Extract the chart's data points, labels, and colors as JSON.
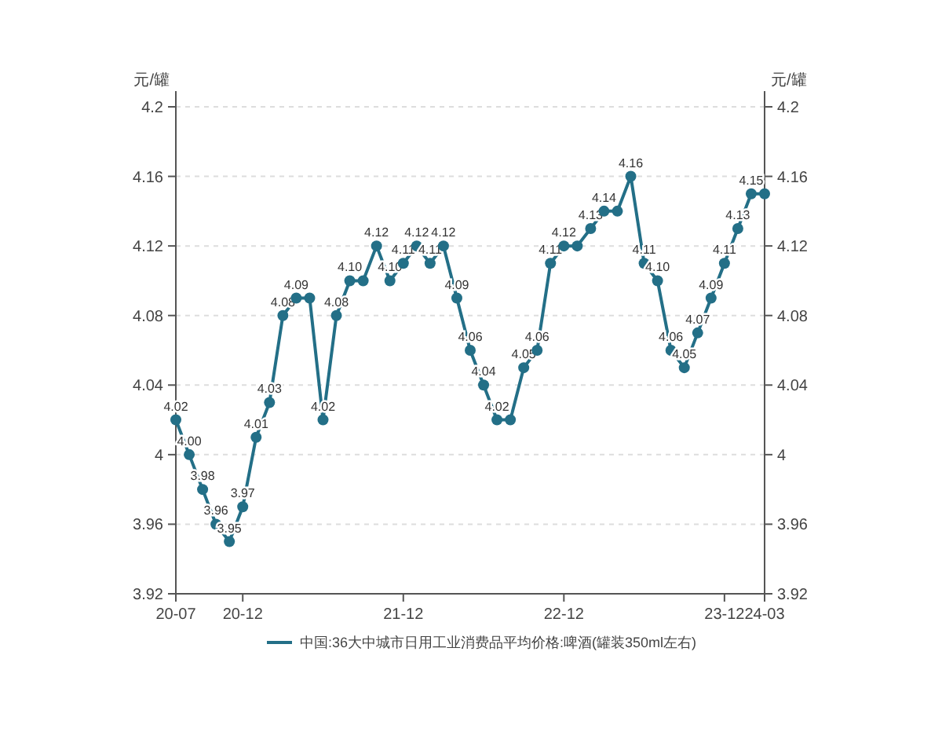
{
  "chart_data": {
    "type": "line",
    "categories": [
      "20-07",
      null,
      null,
      null,
      null,
      "20-12",
      null,
      null,
      null,
      null,
      null,
      null,
      null,
      null,
      null,
      null,
      null,
      "21-12",
      null,
      null,
      null,
      null,
      null,
      null,
      null,
      null,
      null,
      null,
      null,
      "22-12",
      null,
      null,
      null,
      null,
      null,
      null,
      null,
      null,
      null,
      null,
      null,
      "23-12",
      null,
      null,
      "24-03"
    ],
    "series": [
      {
        "name": "中国:36大中城市日用工业消费品平均价格:啤酒(罐装350ml左右)",
        "color": "#236f87",
        "values": [
          4.02,
          4.0,
          3.98,
          3.96,
          3.95,
          3.97,
          4.01,
          4.03,
          4.08,
          4.09,
          4.09,
          4.02,
          4.08,
          4.1,
          4.1,
          4.12,
          4.1,
          4.11,
          4.12,
          4.11,
          4.12,
          4.09,
          4.06,
          4.04,
          4.02,
          4.02,
          4.05,
          4.06,
          4.11,
          4.12,
          4.12,
          4.13,
          4.14,
          4.14,
          4.16,
          4.11,
          4.1,
          4.06,
          4.05,
          4.07,
          4.09,
          4.11,
          4.13,
          4.15,
          4.15
        ],
        "value_labels": [
          "4.02",
          "4.00",
          "3.98",
          "3.96",
          "3.95",
          "3.97",
          "4.01",
          "4.03",
          "4.08",
          "4.09",
          null,
          "4.02",
          "4.08",
          "4.10",
          null,
          "4.12",
          "4.10",
          "4.11",
          "4.12",
          "4.11",
          "4.12",
          "4.09",
          "4.06",
          "4.04",
          "4.02",
          null,
          "4.05",
          "4.06",
          "4.11",
          "4.12",
          null,
          "4.13",
          "4.14",
          null,
          "4.16",
          "4.11",
          "4.10",
          "4.06",
          "4.05",
          "4.07",
          "4.09",
          "4.11",
          "4.13",
          "4.15",
          null
        ]
      }
    ],
    "ylim": [
      3.92,
      4.2
    ],
    "yticks": [
      3.92,
      3.96,
      4,
      4.04,
      4.08,
      4.12,
      4.16,
      4.2
    ],
    "y2lim": [
      3.92,
      4.2
    ],
    "y2ticks": [
      3.92,
      3.96,
      4,
      4.04,
      4.08,
      4.12,
      4.16,
      4.2
    ],
    "ylabel": "元/罐",
    "y2label": "元/罐",
    "grid": "y",
    "legend": "bottom",
    "marker": "circle",
    "line_style": "solid"
  }
}
